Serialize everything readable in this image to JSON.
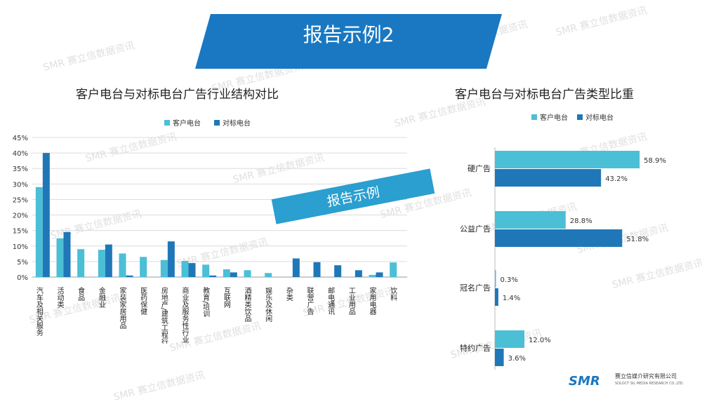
{
  "header": {
    "title": "报告示例2"
  },
  "stamp": {
    "text": "报告示例"
  },
  "watermark": {
    "text": "赛立信数据资讯",
    "brand": "SMR"
  },
  "logo": {
    "brand": "SMR",
    "company": "赛立信媒介研究有限公司",
    "company_en": "SOLOCT SIL MEDIA RESEARCH CO.,LTD."
  },
  "colors": {
    "client": "#4bbfd6",
    "benchmark": "#1f77b8",
    "banner": "#1a78c2"
  },
  "chart_data": [
    {
      "type": "bar",
      "title": "客户电台与对标电台广告行业结构对比",
      "legend_position": "top",
      "grid": true,
      "categories": [
        "汽车及相关服务",
        "活动类",
        "食品",
        "金融业",
        "家装家居用品",
        "医药保健",
        "房地产/建筑工程行业",
        "商业及服务性行业",
        "教育/培训",
        "互联网",
        "酒精类饮品",
        "娱乐及休闲",
        "杂类",
        "联营广告",
        "邮电通讯",
        "工业用品",
        "家用电器",
        "饮料"
      ],
      "yticks": [
        "0%",
        "5%",
        "10%",
        "15%",
        "20%",
        "25%",
        "30%",
        "35%",
        "40%",
        "45%"
      ],
      "ylim": [
        0,
        45
      ],
      "series": [
        {
          "name": "客户电台",
          "values": [
            29,
            12.5,
            9,
            8.8,
            7.6,
            6.5,
            5.5,
            5.2,
            4,
            2.5,
            2.2,
            1.3,
            0,
            0,
            0,
            0,
            0.7,
            4.7
          ]
        },
        {
          "name": "对标电台",
          "values": [
            40,
            14.5,
            0,
            10.5,
            0.5,
            0,
            11.5,
            4.5,
            0.5,
            1.5,
            0,
            0,
            6,
            4.8,
            3.8,
            2.2,
            1.5,
            0
          ]
        }
      ]
    },
    {
      "type": "bar",
      "orientation": "horizontal",
      "title": "客户电台与对标电台广告类型比重",
      "legend_position": "top",
      "grid": false,
      "categories": [
        "硬广告",
        "公益广告",
        "冠名广告",
        "特约广告"
      ],
      "series": [
        {
          "name": "客户电台",
          "values": [
            58.9,
            28.8,
            0.3,
            12.0
          ],
          "labels": [
            "58.9%",
            "28.8%",
            "0.3%",
            "12.0%"
          ]
        },
        {
          "name": "对标电台",
          "values": [
            43.2,
            51.8,
            1.4,
            3.6
          ],
          "labels": [
            "43.2%",
            "51.8%",
            "1.4%",
            "3.6%"
          ]
        }
      ]
    }
  ]
}
